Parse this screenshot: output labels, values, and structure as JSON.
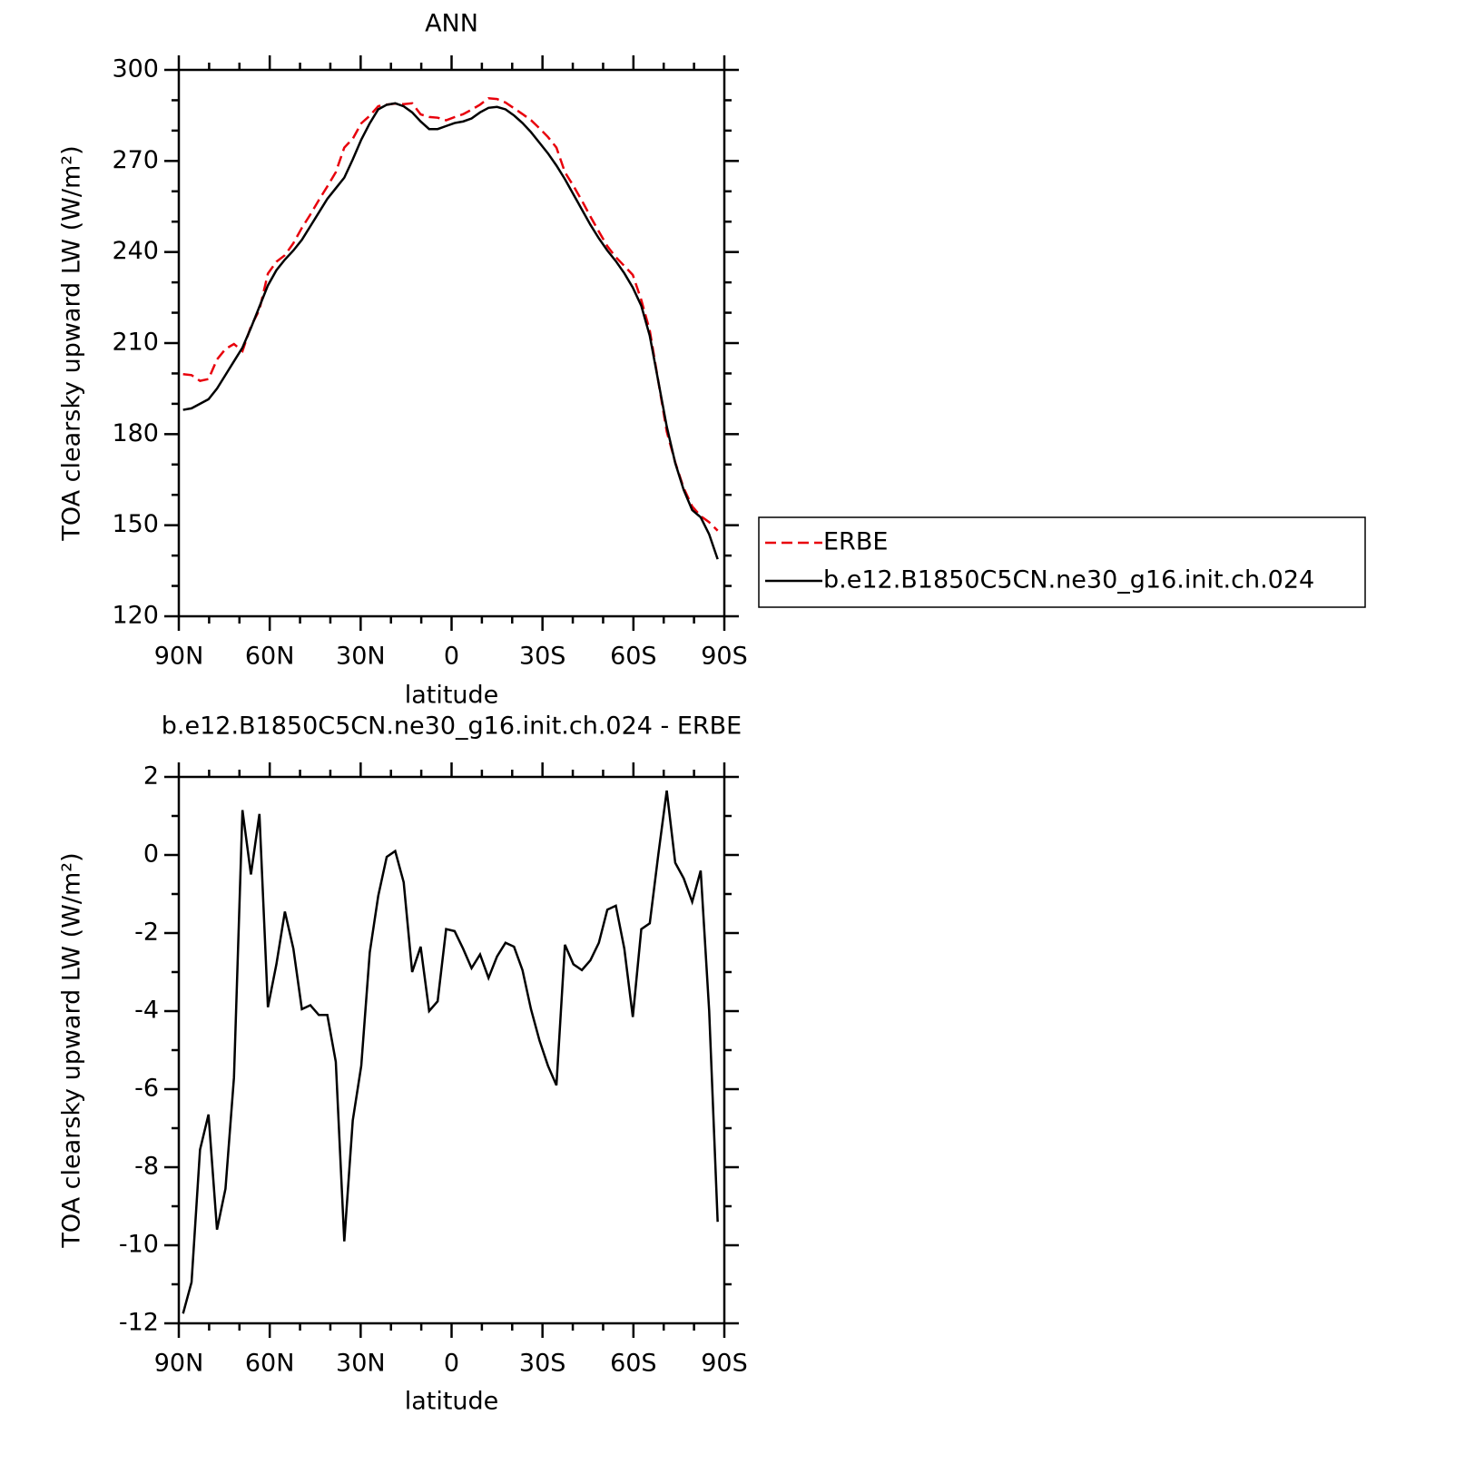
{
  "chart_data": [
    {
      "type": "line",
      "title": "ANN",
      "xlabel": "latitude",
      "ylabel": "TOA clearsky upward LW (W/m²)",
      "x": [
        88.6,
        85.8,
        83.0,
        80.2,
        77.4,
        74.6,
        71.8,
        69.0,
        66.2,
        63.4,
        60.6,
        57.8,
        55.0,
        52.2,
        49.4,
        46.6,
        43.8,
        41.0,
        38.2,
        35.4,
        32.6,
        29.8,
        27.0,
        24.2,
        21.4,
        18.6,
        15.8,
        13.0,
        10.2,
        7.4,
        4.6,
        1.8,
        -1.0,
        -3.8,
        -6.6,
        -9.4,
        -12.2,
        -15.0,
        -17.8,
        -20.6,
        -23.4,
        -26.2,
        -29.0,
        -31.8,
        -34.6,
        -37.4,
        -40.2,
        -43.0,
        -45.8,
        -48.6,
        -51.4,
        -54.2,
        -57.0,
        -59.8,
        -62.6,
        -65.4,
        -68.2,
        -71.0,
        -73.8,
        -76.6,
        -79.4,
        -82.2,
        -85.0,
        -87.8
      ],
      "series": [
        {
          "name": "ERBE",
          "color": "#e8000b",
          "linestyle": "dashed",
          "values": [
            199.75,
            199.45,
            197.55,
            198.15,
            204.6,
            208.05,
            209.7,
            207.35,
            215.5,
            220.95,
            232.9,
            236.8,
            238.95,
            242.9,
            247.95,
            252.35,
            257.1,
            261.6,
            266.3,
            274.4,
            277.3,
            282.4,
            284.9,
            288.05,
            288.55,
            288.9,
            288.7,
            289.0,
            285.35,
            284.5,
            284.25,
            283.4,
            284.45,
            285.4,
            286.9,
            288.55,
            290.65,
            290.4,
            289.25,
            287.35,
            285.45,
            283.45,
            280.75,
            277.9,
            274.4,
            266.3,
            261.8,
            256.95,
            251.7,
            246.75,
            241.9,
            238.3,
            235.4,
            232.45,
            224.2,
            214.15,
            197.5,
            180.85,
            170.7,
            162.2,
            156.2,
            153,
            151,
            148.2
          ]
        },
        {
          "name": "b.e12.B1850C5CN.ne30_g16.init.ch.024",
          "color": "#000000",
          "linestyle": "solid",
          "values": [
            188,
            188.5,
            190,
            191.5,
            195,
            199.5,
            204,
            208.5,
            215,
            222,
            229,
            234,
            237.5,
            240.5,
            244,
            248.5,
            253,
            257.5,
            261,
            264.5,
            270.5,
            277,
            282.4,
            287,
            288.5,
            289,
            288,
            286,
            283,
            280.5,
            280.5,
            281.5,
            282.5,
            283,
            284,
            286,
            287.5,
            287.8,
            287,
            285,
            282.5,
            279.5,
            276,
            272.5,
            268.5,
            264,
            259,
            254,
            249,
            244.5,
            240.5,
            237,
            233,
            228.3,
            222.3,
            212.4,
            197.5,
            182.5,
            170.5,
            161.6,
            155,
            152.6,
            147,
            138.8
          ]
        }
      ],
      "xlim": [
        90,
        -90
      ],
      "xticks": [
        {
          "value": 90,
          "label": "90N"
        },
        {
          "value": 60,
          "label": "60N"
        },
        {
          "value": 30,
          "label": "30N"
        },
        0,
        {
          "value": -30,
          "label": "30S"
        },
        {
          "value": -60,
          "label": "60S"
        },
        {
          "value": -90,
          "label": "90S"
        }
      ],
      "ylim": [
        120,
        300
      ],
      "yticks": [
        120,
        150,
        180,
        210,
        240,
        270,
        300
      ],
      "legend": "right"
    },
    {
      "type": "line",
      "title": "b.e12.B1850C5CN.ne30_g16.init.ch.024 - ERBE",
      "xlabel": "latitude",
      "ylabel": "TOA clearsky upward LW (W/m²)",
      "x": [
        88.6,
        85.8,
        83.0,
        80.2,
        77.4,
        74.6,
        71.8,
        69.0,
        66.2,
        63.4,
        60.6,
        57.8,
        55.0,
        52.2,
        49.4,
        46.6,
        43.8,
        41.0,
        38.2,
        35.4,
        32.6,
        29.8,
        27.0,
        24.2,
        21.4,
        18.6,
        15.8,
        13.0,
        10.2,
        7.4,
        4.6,
        1.8,
        -1.0,
        -3.8,
        -6.6,
        -9.4,
        -12.2,
        -15.0,
        -17.8,
        -20.6,
        -23.4,
        -26.2,
        -29.0,
        -31.8,
        -34.6,
        -37.4,
        -40.2,
        -43.0,
        -45.8,
        -48.6,
        -51.4,
        -54.2,
        -57.0,
        -59.8,
        -62.6,
        -65.4,
        -68.2,
        -71.0,
        -73.8,
        -76.6,
        -79.4,
        -82.2,
        -85.0,
        -87.8
      ],
      "series": [
        {
          "color": "#000000",
          "linestyle": "solid",
          "values": [
            -11.75,
            -10.95,
            -7.55,
            -6.65,
            -9.6,
            -8.55,
            -5.7,
            1.15,
            -0.5,
            1.05,
            -3.9,
            -2.8,
            -1.45,
            -2.4,
            -3.95,
            -3.85,
            -4.1,
            -4.1,
            -5.3,
            -9.9,
            -6.8,
            -5.4,
            -2.5,
            -1.05,
            -0.05,
            0.1,
            -0.7,
            -3.0,
            -2.35,
            -4.0,
            -3.75,
            -1.9,
            -1.95,
            -2.4,
            -2.9,
            -2.55,
            -3.15,
            -2.6,
            -2.25,
            -2.35,
            -2.95,
            -3.95,
            -4.75,
            -5.4,
            -5.9,
            -2.3,
            -2.8,
            -2.95,
            -2.7,
            -2.25,
            -1.4,
            -1.3,
            -2.4,
            -4.15,
            -1.9,
            -1.75,
            0.0,
            1.65,
            -0.2,
            -0.6,
            -1.2,
            -0.4,
            -4.0,
            -9.4
          ]
        }
      ],
      "xlim": [
        90,
        -90
      ],
      "xticks": [
        {
          "value": 90,
          "label": "90N"
        },
        {
          "value": 60,
          "label": "60N"
        },
        {
          "value": 30,
          "label": "30N"
        },
        0,
        {
          "value": -30,
          "label": "30S"
        },
        {
          "value": -60,
          "label": "60S"
        },
        {
          "value": -90,
          "label": "90S"
        }
      ],
      "ylim": [
        -12,
        2
      ],
      "yticks": [
        -12,
        -10,
        -8,
        -6,
        -4,
        -2,
        0,
        2
      ]
    }
  ]
}
